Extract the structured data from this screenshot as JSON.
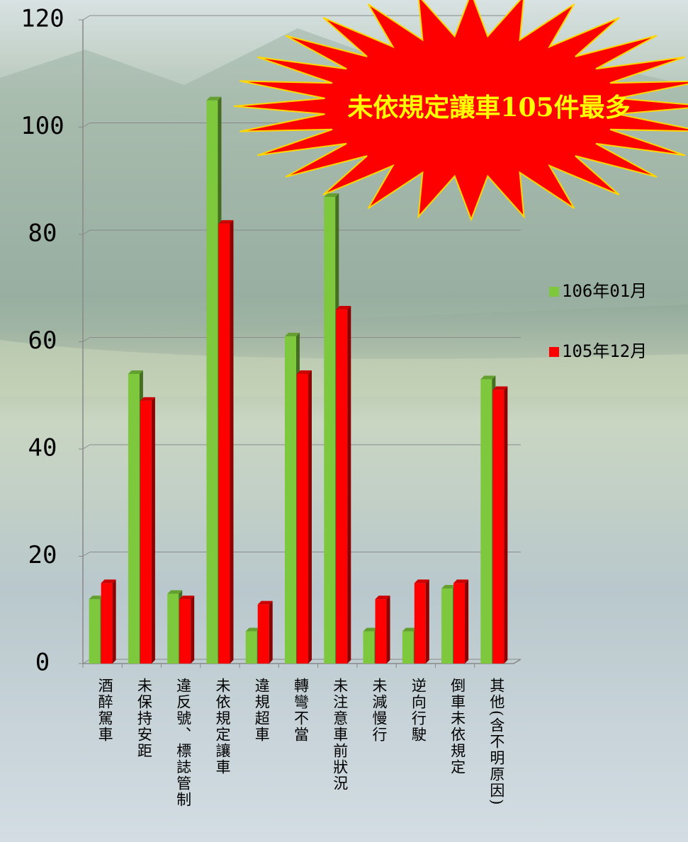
{
  "chart_data": {
    "type": "bar",
    "annotation": "未依規定讓車105件最多",
    "categories": [
      "酒醉駕車",
      "未保持安距",
      "違反號、標誌管制",
      "未依規定讓車",
      "違規超車",
      "轉彎不當",
      "未注意車前狀況",
      "未減慢行",
      "逆向行駛",
      "倒車未依規定",
      "其他(含不明原因)"
    ],
    "series": [
      {
        "name": "106年01月",
        "color": "#7dc83c",
        "values": [
          12,
          54,
          13,
          105,
          6,
          61,
          87,
          6,
          6,
          14,
          53
        ]
      },
      {
        "name": "105年12月",
        "color": "#ff0000",
        "values": [
          15,
          49,
          12,
          82,
          11,
          54,
          66,
          12,
          15,
          15,
          51
        ]
      }
    ],
    "ylim": [
      0,
      120
    ],
    "yticks": [
      0,
      20,
      40,
      60,
      80,
      100,
      120
    ],
    "grid": true,
    "legend": "right"
  }
}
